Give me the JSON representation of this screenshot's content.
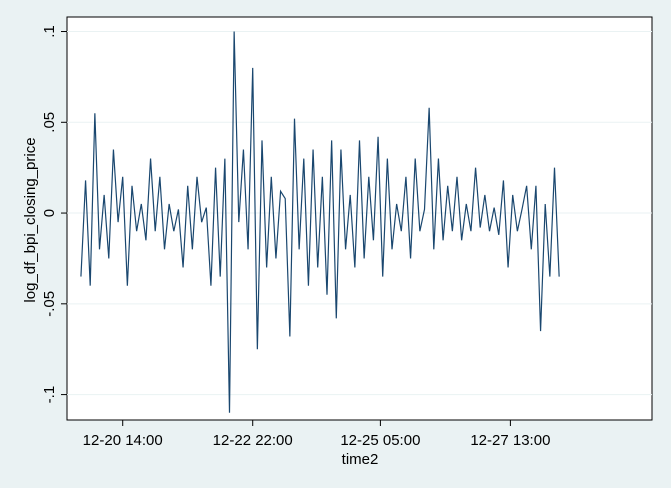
{
  "chart_data": {
    "type": "line",
    "x_label": "time2",
    "y_label": "log_df_bpi_closing_price",
    "x": [
      "12-19 20:00",
      "12-19 22:00",
      "12-20 00:00",
      "12-20 02:00",
      "12-20 04:00",
      "12-20 06:00",
      "12-20 08:00",
      "12-20 10:00",
      "12-20 12:00",
      "12-20 14:00",
      "12-20 16:00",
      "12-20 18:00",
      "12-20 20:00",
      "12-20 22:00",
      "12-21 00:00",
      "12-21 02:00",
      "12-21 04:00",
      "12-21 06:00",
      "12-21 08:00",
      "12-21 10:00",
      "12-21 12:00",
      "12-21 14:00",
      "12-21 16:00",
      "12-21 18:00",
      "12-21 20:00",
      "12-21 22:00",
      "12-22 00:00",
      "12-22 02:00",
      "12-22 04:00",
      "12-22 06:00",
      "12-22 08:00",
      "12-22 10:00",
      "12-22 12:00",
      "12-22 14:00",
      "12-22 16:00",
      "12-22 18:00",
      "12-22 20:00",
      "12-22 22:00",
      "12-23 00:00",
      "12-23 02:00",
      "12-23 04:00",
      "12-23 06:00",
      "12-23 08:00",
      "12-23 10:00",
      "12-23 12:00",
      "12-23 14:00",
      "12-23 16:00",
      "12-23 18:00",
      "12-23 20:00",
      "12-23 22:00",
      "12-24 00:00",
      "12-24 02:00",
      "12-24 04:00",
      "12-24 06:00",
      "12-24 08:00",
      "12-24 10:00",
      "12-24 12:00",
      "12-24 14:00",
      "12-24 16:00",
      "12-24 18:00",
      "12-24 20:00",
      "12-24 22:00",
      "12-25 00:00",
      "12-25 02:00",
      "12-25 04:00",
      "12-25 06:00",
      "12-25 08:00",
      "12-25 10:00",
      "12-25 12:00",
      "12-25 14:00",
      "12-25 16:00",
      "12-25 18:00",
      "12-25 20:00",
      "12-25 22:00",
      "12-26 00:00",
      "12-26 02:00",
      "12-26 04:00",
      "12-26 06:00",
      "12-26 08:00",
      "12-26 10:00",
      "12-26 12:00",
      "12-26 14:00",
      "12-26 16:00",
      "12-26 18:00",
      "12-26 20:00",
      "12-26 22:00",
      "12-27 00:00",
      "12-27 02:00",
      "12-27 04:00",
      "12-27 06:00",
      "12-27 08:00",
      "12-27 10:00",
      "12-27 12:00",
      "12-27 14:00",
      "12-27 16:00",
      "12-27 18:00",
      "12-27 20:00",
      "12-27 22:00",
      "12-28 00:00",
      "12-28 02:00",
      "12-28 04:00",
      "12-28 06:00",
      "12-28 08:00",
      "12-28 10:00"
    ],
    "series": [
      {
        "color": "#1a476f",
        "values": [
          -0.035,
          0.018,
          -0.04,
          0.055,
          -0.02,
          0.01,
          -0.025,
          0.035,
          -0.005,
          0.02,
          -0.04,
          0.015,
          -0.01,
          0.005,
          -0.015,
          0.03,
          -0.01,
          0.02,
          -0.02,
          0.005,
          -0.01,
          0.002,
          -0.03,
          0.015,
          -0.02,
          0.02,
          -0.005,
          0.003,
          -0.04,
          0.025,
          -0.035,
          0.03,
          -0.11,
          0.1,
          -0.005,
          0.035,
          -0.02,
          0.08,
          -0.075,
          0.04,
          -0.03,
          0.02,
          -0.025,
          0.012,
          0.008,
          -0.068,
          0.052,
          -0.02,
          0.03,
          -0.04,
          0.035,
          -0.03,
          0.02,
          -0.045,
          0.04,
          -0.058,
          0.035,
          -0.02,
          0.01,
          -0.03,
          0.04,
          -0.025,
          0.02,
          -0.015,
          0.042,
          -0.035,
          0.03,
          -0.02,
          0.005,
          -0.01,
          0.02,
          -0.025,
          0.03,
          -0.01,
          0.002,
          0.058,
          -0.02,
          0.03,
          -0.015,
          0.015,
          -0.01,
          0.02,
          -0.015,
          0.005,
          -0.01,
          0.025,
          -0.008,
          0.01,
          -0.01,
          0.003,
          -0.012,
          0.018,
          -0.03,
          0.01,
          -0.01,
          0.002,
          0.015,
          -0.02,
          0.015,
          -0.065,
          0.005,
          -0.035,
          0.025,
          -0.035
        ]
      }
    ],
    "xlim": [
      "12-19 14:00",
      "12-30 02:00"
    ],
    "xticks": [
      "12-20 14:00",
      "12-22 22:00",
      "12-25 05:00",
      "12-27 13:00"
    ],
    "ylim": [
      -0.114,
      0.108
    ],
    "yticks": [
      {
        "value": -0.1,
        "label": "-.1"
      },
      {
        "value": -0.05,
        "label": "-.05"
      },
      0,
      {
        "value": 0.05,
        "label": ".05"
      },
      {
        "value": 0.1,
        "label": ".1"
      }
    ],
    "grid": true
  }
}
